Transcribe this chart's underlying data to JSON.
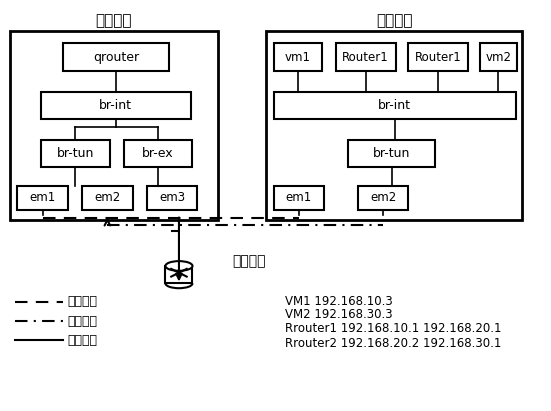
{
  "title_left": "控制节点",
  "title_right": "计算节点",
  "legend_mgmt": "管理网络",
  "legend_tunnel": "隧道网络",
  "legend_external": "外部网络",
  "external_network_label": "外部网络",
  "ip_lines": [
    "VM1 192.168.10.3",
    "VM2 192.168.30.3",
    "Rrouter1 192.168.10.1 192.168.20.1",
    "Rrouter2 192.168.20.2 192.168.30.1"
  ],
  "bg_color": "#ffffff",
  "box_color": "#000000",
  "text_color": "#000000"
}
